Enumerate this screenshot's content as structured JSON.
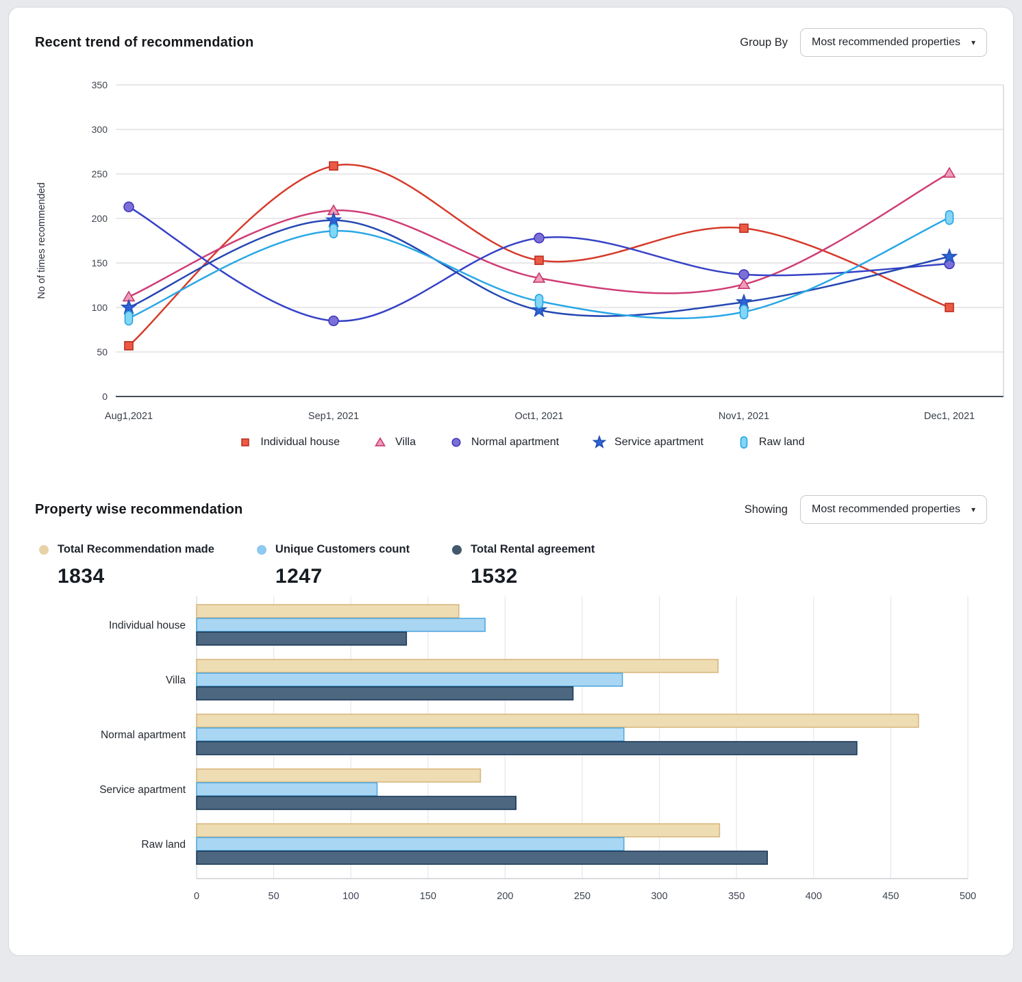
{
  "window": {
    "bg": "#e7e9ec",
    "card_bg": "#ffffff"
  },
  "icons": {
    "caret_glyph": "▾"
  },
  "trend_section": {
    "title": "Recent trend of recommendation",
    "control_label": "Group By",
    "dropdown_value": "Most recommended properties"
  },
  "property_section": {
    "title": "Property wise recommendation",
    "control_label": "Showing",
    "dropdown_value": "Most recommended properties",
    "stats": [
      {
        "label": "Total Recommendation made",
        "value": "1834",
        "color": "#e6d2a6"
      },
      {
        "label": "Unique Customers count",
        "value": "1247",
        "color": "#8ec9ef"
      },
      {
        "label": "Total Rental agreement",
        "value": "1532",
        "color": "#43596e"
      }
    ]
  },
  "chart_data": [
    {
      "type": "line",
      "title": "Recent trend of recommendation",
      "xlabel": "",
      "ylabel": "No of times recommended",
      "x": [
        "Aug1,2021",
        "Sep1, 2021",
        "Oct1, 2021",
        "Nov1, 2021",
        "Dec1, 2021"
      ],
      "ylim": [
        0,
        350
      ],
      "ytick_step": 50,
      "grid": "horizontal",
      "curve": "smooth",
      "legend_position": "bottom",
      "series": [
        {
          "name": "Individual house",
          "marker": "square",
          "line_color": "#d63a2a",
          "marker_fill": "#ec5a45",
          "marker_stroke": "#ba2d1d",
          "values": [
            57,
            259,
            153,
            189,
            100
          ]
        },
        {
          "name": "Villa",
          "marker": "triangle",
          "line_color": "#cf3d76",
          "marker_fill": "#f09cba",
          "marker_stroke": "#c63a6e",
          "values": [
            112,
            209,
            133,
            126,
            251
          ]
        },
        {
          "name": "Normal apartment",
          "marker": "circle",
          "line_color": "#3642c6",
          "marker_fill": "#7b70d7",
          "marker_stroke": "#4136bd",
          "values": [
            213,
            85,
            178,
            137,
            149
          ]
        },
        {
          "name": "Service apartment",
          "marker": "star",
          "line_color": "#2447b2",
          "marker_fill": "#2d63d6",
          "marker_stroke": "#2450b5",
          "values": [
            100,
            198,
            97,
            106,
            157
          ]
        },
        {
          "name": "Raw land",
          "marker": "capsule",
          "line_color": "#28a7e6",
          "marker_fill": "#84d6f7",
          "marker_stroke": "#28a5e0",
          "values": [
            88,
            186,
            107,
            95,
            201
          ]
        }
      ]
    },
    {
      "type": "bar",
      "orientation": "horizontal",
      "title": "Property wise recommendation",
      "categories": [
        "Individual house",
        "Villa",
        "Normal apartment",
        "Service apartment",
        "Raw land"
      ],
      "xlim": [
        0,
        500
      ],
      "xtick_step": 50,
      "grid": "vertical",
      "series": [
        {
          "name": "Total Recommendation made",
          "total": 1834,
          "fill": "#eedcb3",
          "stroke": "#d8b77d",
          "values": [
            170,
            338,
            468,
            184,
            339
          ]
        },
        {
          "name": "Unique Customers count",
          "total": 1247,
          "fill": "#a9d6f3",
          "stroke": "#54a9de",
          "values": [
            187,
            276,
            277,
            117,
            277
          ]
        },
        {
          "name": "Total Rental agreement",
          "total": 1532,
          "fill": "#4e6781",
          "stroke": "#1c3a58",
          "values": [
            136,
            244,
            428,
            207,
            370
          ]
        }
      ]
    }
  ]
}
